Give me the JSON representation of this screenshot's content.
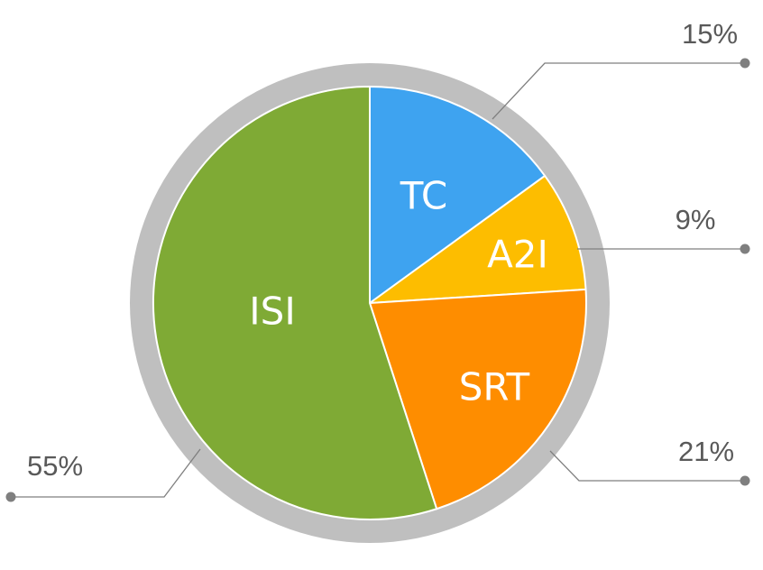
{
  "chart_data": {
    "type": "pie",
    "slices": [
      {
        "label": "TC",
        "value": 15,
        "value_label": "15%",
        "color": "#3ea3f0"
      },
      {
        "label": "A2I",
        "value": 9,
        "value_label": "9%",
        "color": "#fdbd00"
      },
      {
        "label": "SRT",
        "value": 21,
        "value_label": "21%",
        "color": "#fe8d00"
      },
      {
        "label": "ISI",
        "value": 55,
        "value_label": "55%",
        "color": "#7faa35"
      }
    ],
    "ring_color": "#bfbfbf",
    "leader_color": "#7f7f7f",
    "legend": "none"
  }
}
